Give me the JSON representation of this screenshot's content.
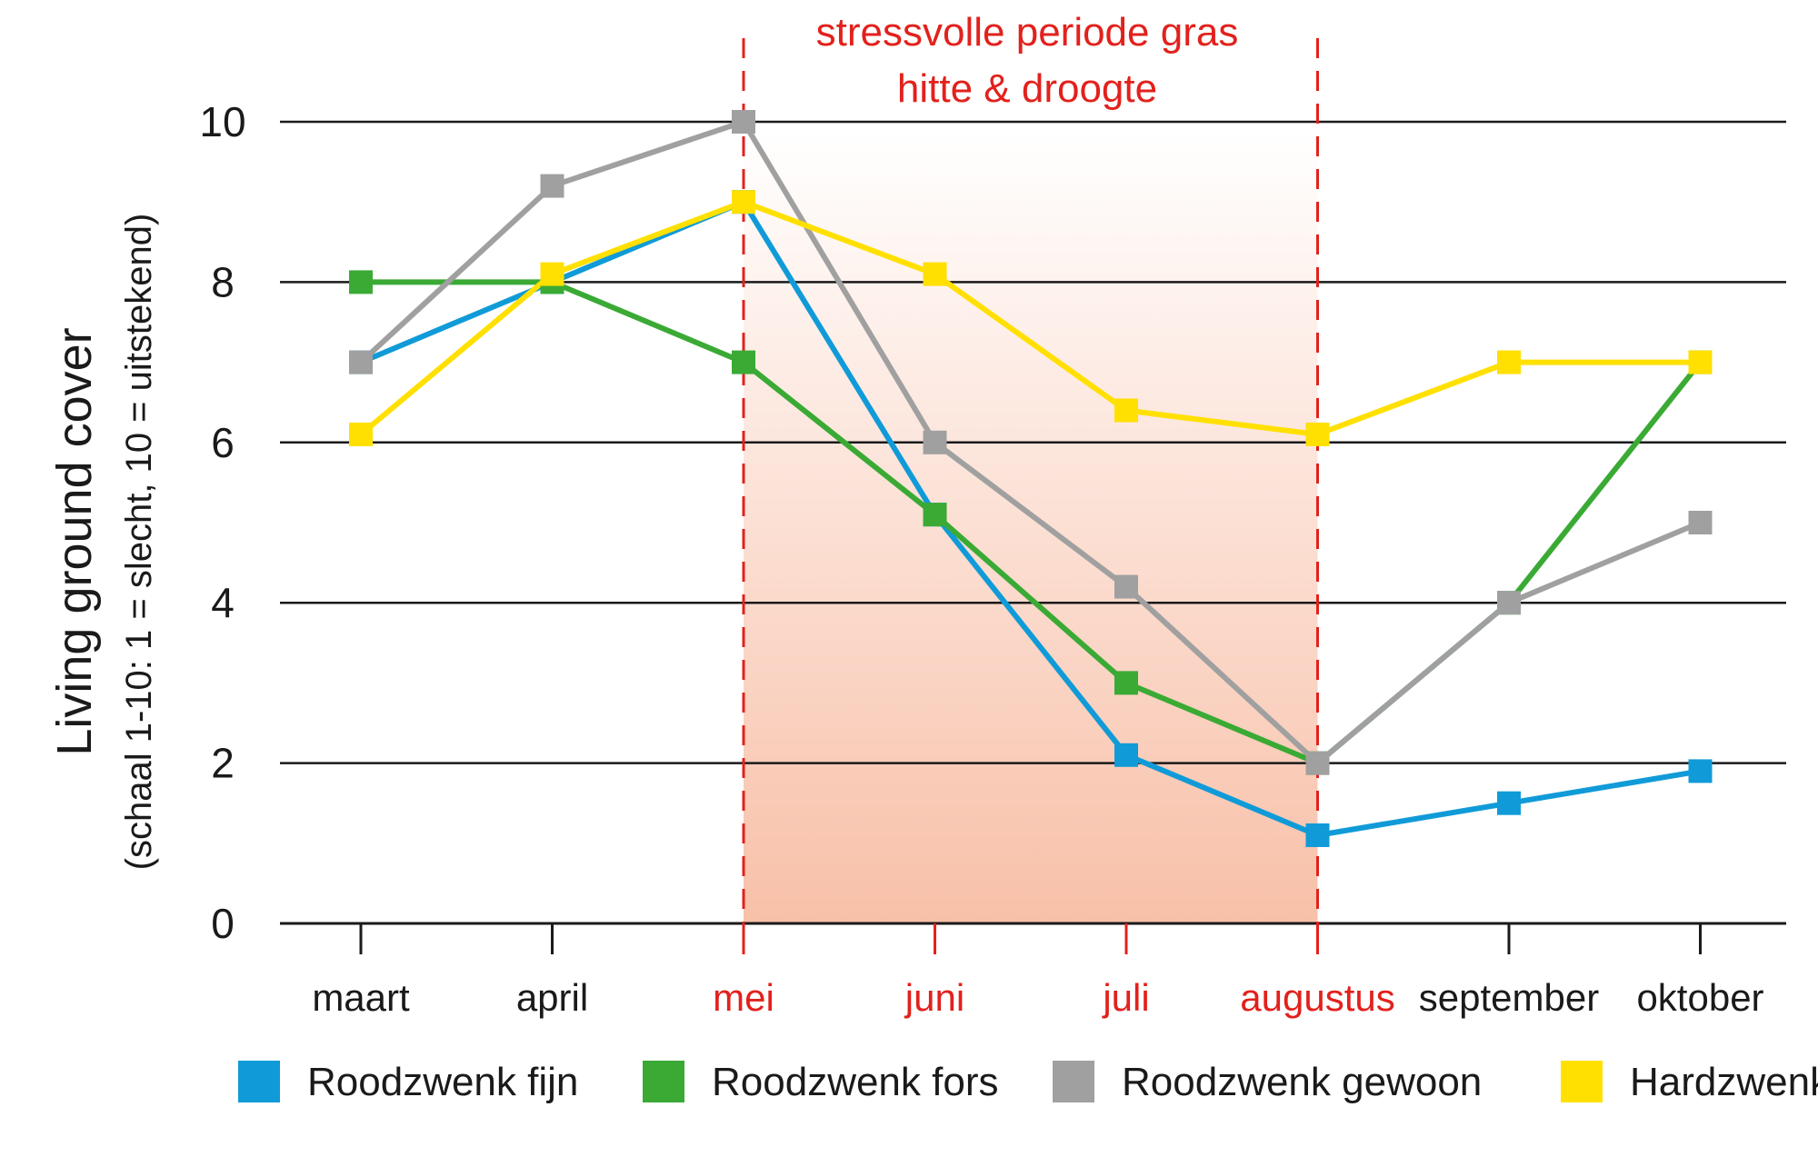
{
  "chart_data": {
    "type": "line",
    "title": "",
    "ylabel_line1": "Living ground cover",
    "ylabel_line2": "(schaal 1-10: 1 = slecht, 10 = uitstekend)",
    "xlabel": "",
    "ylim": [
      0,
      10
    ],
    "yticks": [
      "0",
      "2",
      "4",
      "6",
      "8",
      "10"
    ],
    "ytick_values": [
      0,
      2,
      4,
      6,
      8,
      10
    ],
    "grid": true,
    "legend_position": "bottom",
    "categories": [
      "maart",
      "april",
      "mei",
      "juni",
      "juli",
      "augustus",
      "september",
      "oktober"
    ],
    "highlighted_categories": [
      "mei",
      "juni",
      "juli",
      "augustus"
    ],
    "stress_period": {
      "start": "mei",
      "end": "augustus",
      "label_line1": "stressvolle periode gras",
      "label_line2": "hitte & droogte",
      "color": "#e2211c"
    },
    "series": [
      {
        "name": "Roodzwenk fijn",
        "color": "#109bd8",
        "values": [
          7.0,
          8.0,
          9.0,
          5.1,
          2.1,
          1.1,
          1.5,
          1.9
        ]
      },
      {
        "name": "Roodzwenk fors",
        "color": "#3aaa35",
        "values": [
          8.0,
          8.0,
          7.0,
          5.1,
          3.0,
          2.0,
          4.0,
          7.0
        ]
      },
      {
        "name": "Roodzwenk gewoon",
        "color": "#a0a0a0",
        "values": [
          7.0,
          9.2,
          10.0,
          6.0,
          4.2,
          2.0,
          4.0,
          5.0
        ]
      },
      {
        "name": "Hardzwenk",
        "color": "#ffe000",
        "values": [
          6.1,
          8.1,
          9.0,
          8.1,
          6.4,
          6.1,
          7.0,
          7.0
        ]
      }
    ]
  }
}
